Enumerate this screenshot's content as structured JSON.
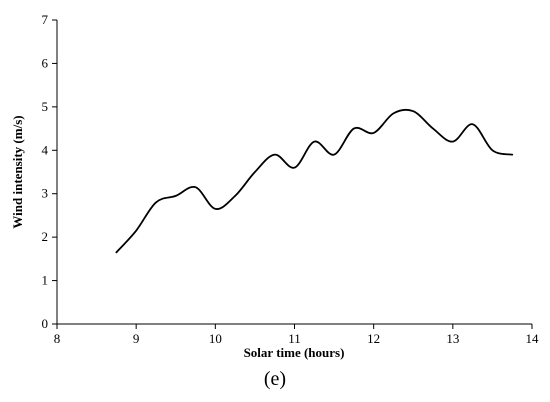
{
  "chart_data": {
    "type": "line",
    "title": "",
    "xlabel": "Solar time (hours)",
    "ylabel": "Wind intensity (m/s)",
    "panel_label": "(e)",
    "xlim": [
      8,
      14
    ],
    "ylim": [
      0,
      7
    ],
    "xticks": [
      "8",
      "9",
      "10",
      "11",
      "12",
      "13",
      "14"
    ],
    "yticks": [
      "0",
      "1",
      "2",
      "3",
      "4",
      "5",
      "6",
      "7"
    ],
    "grid": false,
    "legend": "none",
    "series": [
      {
        "color": "#000000",
        "x": [
          8.75,
          9.0,
          9.25,
          9.5,
          9.75,
          10.0,
          10.25,
          10.5,
          10.75,
          11.0,
          11.25,
          11.5,
          11.75,
          12.0,
          12.25,
          12.5,
          12.75,
          13.0,
          13.25,
          13.5,
          13.75
        ],
        "y": [
          1.65,
          2.15,
          2.8,
          2.95,
          3.15,
          2.65,
          2.95,
          3.5,
          3.9,
          3.6,
          4.2,
          3.9,
          4.5,
          4.4,
          4.85,
          4.9,
          4.5,
          4.2,
          4.6,
          4.0,
          3.9
        ]
      }
    ]
  }
}
